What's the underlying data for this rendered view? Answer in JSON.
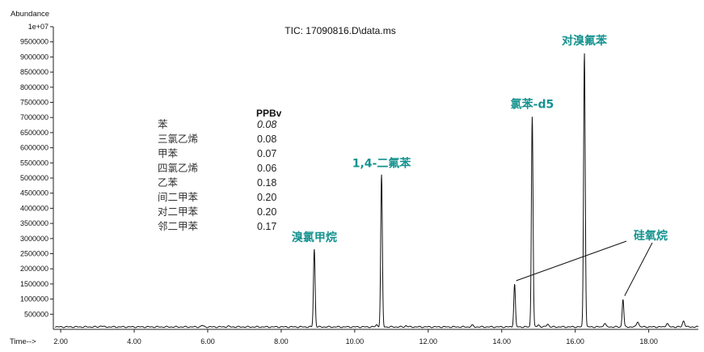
{
  "chart_data": {
    "type": "line",
    "title": "TIC: 17090816.D\\data.ms",
    "xlabel": "Time-->",
    "ylabel": "Abundance",
    "xlim": [
      1.8,
      19.35
    ],
    "ylim": [
      0,
      10000000
    ],
    "x_ticks": [
      2.0,
      4.0,
      6.0,
      8.0,
      10.0,
      12.0,
      14.0,
      16.0,
      18.0
    ],
    "x_tick_labels": [
      "2.00",
      "4.00",
      "6.00",
      "8.00",
      "10.00",
      "12.00",
      "14.00",
      "16.00",
      "18.00"
    ],
    "y_ticks": [
      500000,
      1000000,
      1500000,
      2000000,
      2500000,
      3000000,
      3500000,
      4000000,
      4500000,
      5000000,
      5500000,
      6000000,
      6500000,
      7000000,
      7500000,
      8000000,
      8500000,
      9000000,
      9500000,
      10000000
    ],
    "y_tick_labels": [
      "500000",
      "1000000",
      "1500000",
      "2000000",
      "2500000",
      "3000000",
      "3500000",
      "4000000",
      "4500000",
      "5000000",
      "5500000",
      "6000000",
      "6500000",
      "7000000",
      "7500000",
      "8000000",
      "8500000",
      "9000000",
      "9500000",
      "1e+07"
    ],
    "baseline": 80000,
    "peaks": [
      {
        "time": 8.9,
        "abundance": 2650000,
        "label": "溴氯甲烷"
      },
      {
        "time": 10.73,
        "abundance": 5100000,
        "label": "1,4-二氟苯"
      },
      {
        "time": 14.35,
        "abundance": 1500000,
        "label": ""
      },
      {
        "time": 14.83,
        "abundance": 7050000,
        "label": "氯苯-d5"
      },
      {
        "time": 16.25,
        "abundance": 9150000,
        "label": "对溴氟苯"
      },
      {
        "time": 17.3,
        "abundance": 1000000,
        "label": ""
      }
    ],
    "minor_peaks": [
      {
        "time": 3.1,
        "abundance": 120000
      },
      {
        "time": 5.85,
        "abundance": 130000
      },
      {
        "time": 6.55,
        "abundance": 100000
      },
      {
        "time": 10.6,
        "abundance": 150000
      },
      {
        "time": 11.4,
        "abundance": 120000
      },
      {
        "time": 13.2,
        "abundance": 130000
      },
      {
        "time": 15.0,
        "abundance": 150000
      },
      {
        "time": 15.25,
        "abundance": 180000
      },
      {
        "time": 16.8,
        "abundance": 200000
      },
      {
        "time": 17.7,
        "abundance": 260000
      },
      {
        "time": 18.5,
        "abundance": 200000
      },
      {
        "time": 18.95,
        "abundance": 280000
      }
    ],
    "siloxane_label": "硅氧烷",
    "siloxane_peak_times": [
      14.35,
      17.3
    ],
    "compound_table": {
      "header": "PPBv",
      "rows": [
        {
          "name": "苯",
          "value": "0.08"
        },
        {
          "name": "三氯乙烯",
          "value": "0.08"
        },
        {
          "name": "甲苯",
          "value": "0.07"
        },
        {
          "name": "四氯乙烯",
          "value": "0.06"
        },
        {
          "name": "乙苯",
          "value": "0.18"
        },
        {
          "name": "间二甲苯",
          "value": "0.20"
        },
        {
          "name": "对二甲苯",
          "value": "0.20"
        },
        {
          "name": "邻二甲苯",
          "value": "0.17"
        }
      ]
    },
    "colors": {
      "trace": "#111111",
      "label": "#14928e"
    }
  }
}
